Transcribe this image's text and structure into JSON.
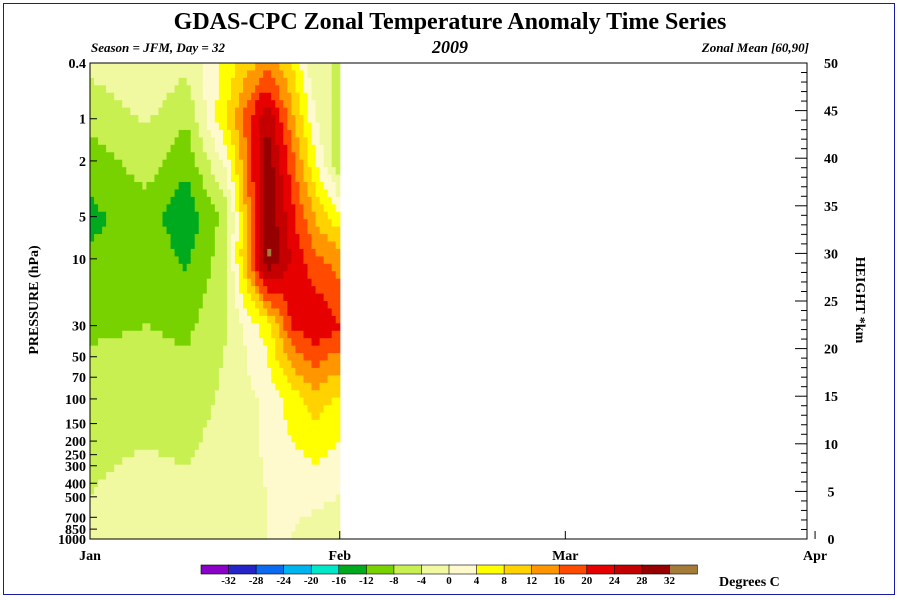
{
  "title": "GDAS-CPC Zonal Temperature Anomaly Time Series",
  "season_label": "Season = JFM, Day =  32",
  "year": "2009",
  "region_label": "Zonal Mean [60,90]",
  "colors": {
    "frame": "#1a1aa6",
    "levels": [
      "#8a00c8",
      "#2424c8",
      "#0a6af0",
      "#00b4f0",
      "#00e8c8",
      "#00aa1e",
      "#78d200",
      "#c8f050",
      "#f0f8a0",
      "#fffacd",
      "#ffff00",
      "#ffd200",
      "#ff9600",
      "#ff4b00",
      "#e60000",
      "#c40000",
      "#960000",
      "#a47c38"
    ]
  },
  "chart_data": {
    "type": "heatmap",
    "title": "GDAS-CPC Zonal Temperature Anomaly Time Series",
    "xlabel": "",
    "ylabel": "PRESSURE (hPa)",
    "y2label": "HEIGHT *km",
    "x_ticks": [
      "Jan",
      "Feb",
      "Mar",
      "Apr"
    ],
    "y_ticks": [
      "0.4",
      "1",
      "2",
      "5",
      "10",
      "30",
      "50",
      "70",
      "100",
      "150",
      "200",
      "250",
      "300",
      "400",
      "500",
      "700",
      "850",
      "1000"
    ],
    "y_log": true,
    "ylim": [
      1000,
      0.4
    ],
    "y2_ticks": [
      "0",
      "5",
      "10",
      "15",
      "20",
      "25",
      "30",
      "35",
      "40",
      "45",
      "50"
    ],
    "y2lim": [
      0,
      50
    ],
    "colorbar_levels": [
      "-32",
      "-28",
      "-24",
      "-20",
      "-16",
      "-12",
      "-8",
      "-4",
      "0",
      "4",
      "8",
      "12",
      "16",
      "20",
      "24",
      "28",
      "32"
    ],
    "colorbar_units": "Degrees C",
    "data_days": 32,
    "anomaly_field": [
      {
        "day": 1,
        "profile": [
          {
            "p": 0.4,
            "t": -3
          },
          {
            "p": 2,
            "t": -10
          },
          {
            "p": 5,
            "t": -13
          },
          {
            "p": 30,
            "t": -9
          },
          {
            "p": 100,
            "t": -5
          },
          {
            "p": 500,
            "t": -4
          },
          {
            "p": 1000,
            "t": -4
          }
        ]
      },
      {
        "day": 8,
        "profile": [
          {
            "p": 0.4,
            "t": 0
          },
          {
            "p": 2,
            "t": -6
          },
          {
            "p": 5,
            "t": -10
          },
          {
            "p": 30,
            "t": -8
          },
          {
            "p": 100,
            "t": -5
          },
          {
            "p": 500,
            "t": -3
          },
          {
            "p": 1000,
            "t": -3
          }
        ]
      },
      {
        "day": 13,
        "profile": [
          {
            "p": 0.4,
            "t": -3
          },
          {
            "p": 2,
            "t": -11
          },
          {
            "p": 5,
            "t": -15
          },
          {
            "p": 30,
            "t": -9
          },
          {
            "p": 100,
            "t": -6
          },
          {
            "p": 500,
            "t": -3
          },
          {
            "p": 1000,
            "t": -2
          }
        ]
      },
      {
        "day": 18,
        "profile": [
          {
            "p": 0.4,
            "t": 6
          },
          {
            "p": 1,
            "t": 8
          },
          {
            "p": 5,
            "t": -6
          },
          {
            "p": 30,
            "t": -4
          },
          {
            "p": 100,
            "t": -3
          },
          {
            "p": 500,
            "t": -2
          },
          {
            "p": 1000,
            "t": -2
          }
        ]
      },
      {
        "day": 23,
        "profile": [
          {
            "p": 0.4,
            "t": 14
          },
          {
            "p": 1,
            "t": 28
          },
          {
            "p": 2,
            "t": 31
          },
          {
            "p": 10,
            "t": 33
          },
          {
            "p": 30,
            "t": 6
          },
          {
            "p": 100,
            "t": 1
          },
          {
            "p": 500,
            "t": 0
          },
          {
            "p": 1000,
            "t": 0
          }
        ]
      },
      {
        "day": 26,
        "profile": [
          {
            "p": 0.4,
            "t": 8
          },
          {
            "p": 2,
            "t": 18
          },
          {
            "p": 10,
            "t": 24
          },
          {
            "p": 30,
            "t": 20
          },
          {
            "p": 100,
            "t": 6
          },
          {
            "p": 500,
            "t": 1
          },
          {
            "p": 1000,
            "t": 0
          }
        ]
      },
      {
        "day": 29,
        "profile": [
          {
            "p": 0.4,
            "t": -4
          },
          {
            "p": 2,
            "t": 4
          },
          {
            "p": 10,
            "t": 17
          },
          {
            "p": 30,
            "t": 24
          },
          {
            "p": 100,
            "t": 10
          },
          {
            "p": 500,
            "t": 1
          },
          {
            "p": 1000,
            "t": -2
          }
        ]
      },
      {
        "day": 32,
        "profile": [
          {
            "p": 0.4,
            "t": -4
          },
          {
            "p": 2,
            "t": -8
          },
          {
            "p": 10,
            "t": 14
          },
          {
            "p": 30,
            "t": 20
          },
          {
            "p": 100,
            "t": 7
          },
          {
            "p": 500,
            "t": 0
          },
          {
            "p": 1000,
            "t": -4
          }
        ]
      }
    ]
  }
}
